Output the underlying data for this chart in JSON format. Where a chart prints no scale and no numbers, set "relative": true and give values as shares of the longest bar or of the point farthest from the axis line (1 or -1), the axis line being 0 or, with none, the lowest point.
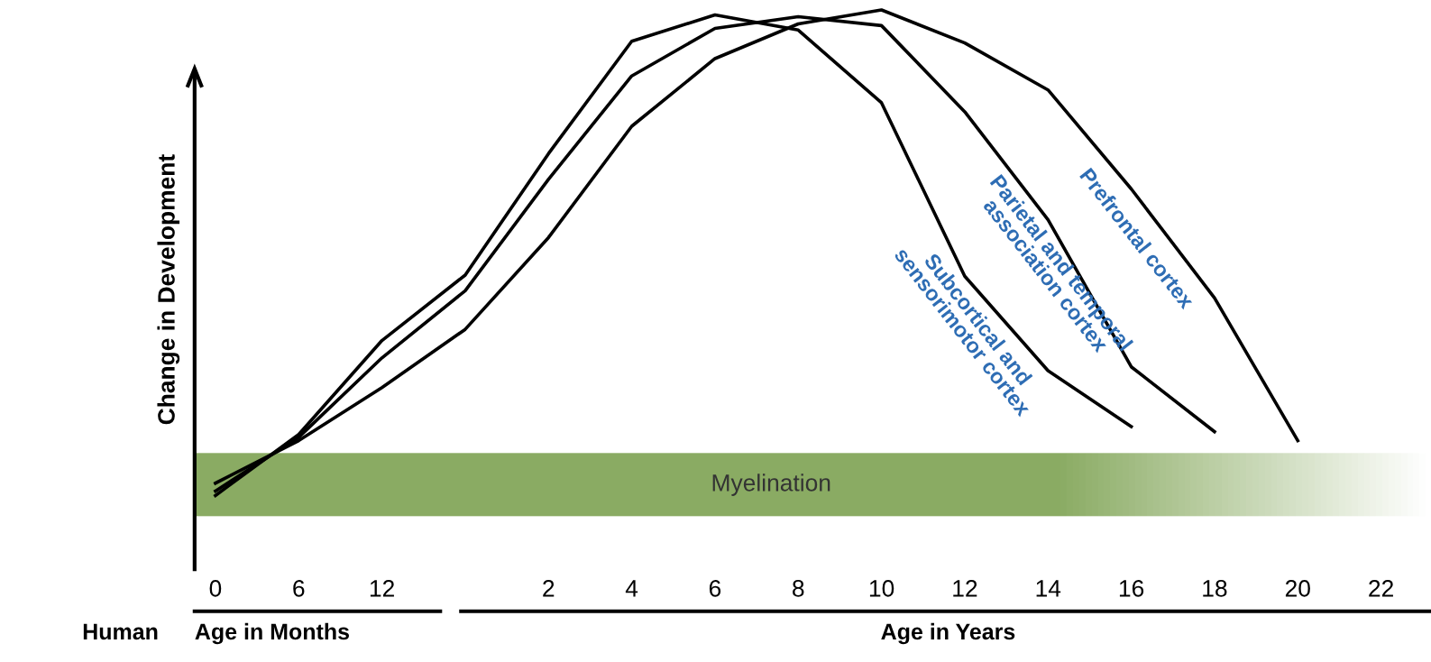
{
  "chart_data": {
    "type": "line",
    "relative": true,
    "ylabel": "Change in Development",
    "categories": [
      "0",
      "6",
      "12",
      null,
      "2",
      "4",
      "6",
      "8",
      "10",
      "12",
      "14",
      "16",
      "18",
      "20",
      "22"
    ],
    "series": [
      {
        "name": "Subcortical and\nsensorimotor cortex",
        "color": "#000000",
        "values": [
          0.132,
          0.241,
          0.409,
          0.526,
          0.743,
          0.944,
          0.991,
          0.964,
          0.834,
          0.524,
          0.355,
          0.255,
          null,
          null,
          null
        ]
      },
      {
        "name": "Parietal and temporal\nassociation cortex",
        "color": "#000000",
        "values": [
          0.14,
          0.236,
          0.378,
          0.498,
          0.697,
          0.882,
          0.967,
          0.988,
          0.972,
          0.818,
          0.625,
          0.362,
          0.246,
          null,
          null
        ]
      },
      {
        "name": "Prefrontal cortex",
        "color": "#000000",
        "values": [
          0.154,
          0.23,
          0.325,
          0.429,
          0.593,
          0.792,
          0.913,
          0.975,
          1.0,
          0.941,
          0.857,
          0.68,
          0.485,
          0.23,
          null
        ]
      }
    ],
    "bands": [
      {
        "axis": "y",
        "from": 0.095,
        "to": 0.207,
        "label": "Myelination",
        "color": "#8aab63"
      }
    ],
    "annotations": [
      "Human",
      "Age in Months",
      "Age in Years"
    ],
    "legend": false,
    "grid": false,
    "marker": "none",
    "line_style": "solid"
  }
}
